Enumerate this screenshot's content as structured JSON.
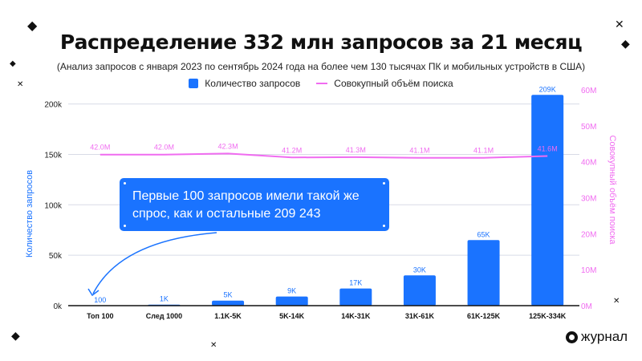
{
  "chart_data": {
    "type": "bar",
    "title": "Распределение 332 млн запросов за 21 месяц",
    "subtitle": "(Анализ запросов с января 2023 по сентябрь 2024 года на более чем 130 тысячах ПК и мобильных устройств в США)",
    "categories": [
      "Топ 100",
      "След 1000",
      "1.1K-5K",
      "5K-14K",
      "14K-31K",
      "31K-61K",
      "61K-125K",
      "125K-334K"
    ],
    "series": [
      {
        "name": "Количество запросов",
        "type": "bar",
        "axis": "left",
        "values": [
          100,
          1000,
          5000,
          9000,
          17000,
          30000,
          65000,
          209000
        ],
        "labels": [
          "100",
          "1K",
          "5K",
          "9K",
          "17K",
          "30K",
          "65K",
          "209K"
        ],
        "color": "#1a73ff"
      },
      {
        "name": "Совокупный объём поиска",
        "type": "line",
        "axis": "right",
        "values": [
          42.0,
          42.0,
          42.3,
          41.2,
          41.3,
          41.1,
          41.1,
          41.6
        ],
        "labels": [
          "42.0M",
          "42.0M",
          "42.3M",
          "41.2M",
          "41.3M",
          "41.1M",
          "41.1M",
          "41.6M"
        ],
        "color": "#f06cf0"
      }
    ],
    "ylabel": "Количество запросов",
    "y2label": "Совокупный объём поиска",
    "ylim": [
      0,
      214000
    ],
    "y2lim": [
      0,
      60
    ],
    "yticks": [
      0,
      50000,
      100000,
      150000,
      200000
    ],
    "ytick_labels": [
      "0k",
      "50k",
      "100k",
      "150k",
      "200k"
    ],
    "y2ticks": [
      0,
      10,
      20,
      30,
      40,
      50,
      60
    ],
    "y2tick_labels": [
      "0M",
      "10M",
      "20M",
      "30M",
      "40M",
      "50M",
      "60M"
    ],
    "grid": true,
    "legend": "top-center",
    "annotation": "Первые 100 запросов имели такой же спрос, как и остальные 209 243"
  },
  "brand": "журнал"
}
